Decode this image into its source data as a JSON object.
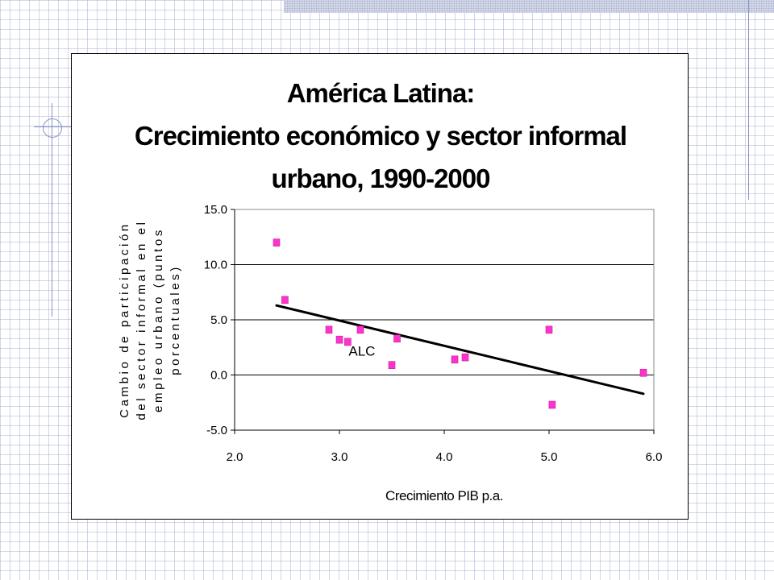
{
  "chart_data": {
    "type": "scatter",
    "title_lines": [
      "América Latina:",
      "Crecimiento económico y sector informal",
      "urbano, 1990-2000"
    ],
    "xlabel": "Crecimiento PIB p.a.",
    "ylabel_lines": [
      "Cambio de participación",
      "del sector informal en el",
      "empleo urbano (puntos",
      "porcentuales)"
    ],
    "xlim": [
      2.0,
      6.0
    ],
    "ylim": [
      -5.0,
      15.0
    ],
    "x_ticks": [
      "2.0",
      "3.0",
      "4.0",
      "5.0",
      "6.0"
    ],
    "y_ticks": [
      "15.0",
      "10.0",
      "5.0",
      "0.0",
      "-5.0"
    ],
    "grid": "horizontal",
    "marker_color": "#ff33cc",
    "trendline": {
      "x": [
        2.4,
        5.9
      ],
      "y": [
        6.3,
        -1.7
      ]
    },
    "series": [
      {
        "x": [
          2.4,
          2.48,
          2.9,
          3.0,
          3.08,
          3.2,
          3.5,
          3.55,
          4.1,
          4.2,
          5.0,
          5.03,
          5.9
        ],
        "y": [
          12.0,
          6.8,
          4.1,
          3.2,
          3.0,
          4.1,
          0.9,
          3.3,
          1.4,
          1.6,
          4.1,
          -2.7,
          0.2
        ]
      }
    ],
    "annotations": [
      {
        "text": "ALC",
        "x": 3.08,
        "y": 3.0
      }
    ]
  }
}
